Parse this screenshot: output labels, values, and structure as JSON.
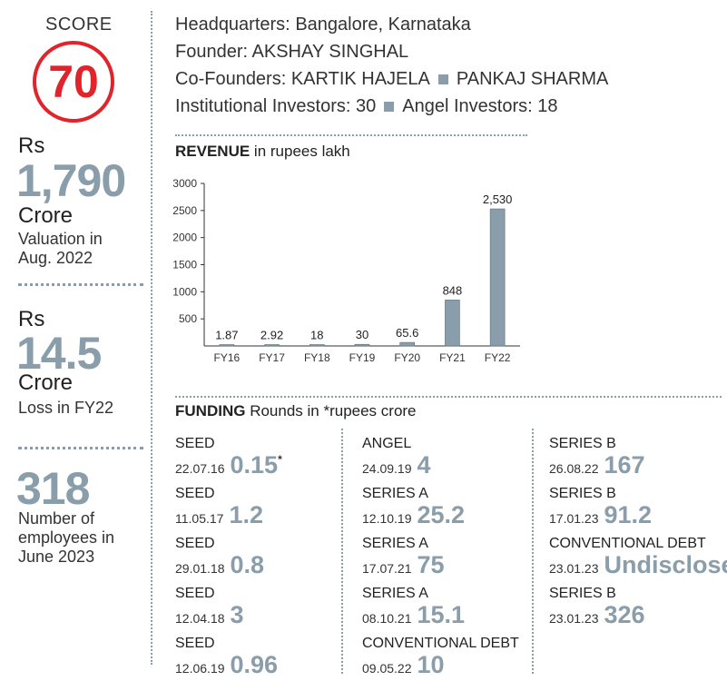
{
  "score": {
    "label": "SCORE",
    "value": "70"
  },
  "valuation": {
    "currency": "Rs",
    "amount": "1,790",
    "unit": "Crore",
    "caption_line1": "Valuation in",
    "caption_line2": "Aug. 2022"
  },
  "loss": {
    "currency": "Rs",
    "amount": "14.5",
    "unit": "Crore",
    "caption": "Loss in FY22"
  },
  "employees": {
    "count": "318",
    "caption_line1": "Number of",
    "caption_line2": "employees in",
    "caption_line3": "June 2023"
  },
  "info": {
    "hq_label": "Headquarters:",
    "hq_value": "Bangalore, Karnataka",
    "founder_label": "Founder:",
    "founder_value": "AKSHAY SINGHAL",
    "cofounders_label": "Co-Founders:",
    "cofounder1": "KARTIK HAJELA",
    "cofounder2": "PANKAJ SHARMA",
    "inst_label": "Institutional Investors:",
    "inst_value": "30",
    "angel_label": "Angel Investors:",
    "angel_value": "18"
  },
  "chart_data": {
    "type": "bar",
    "title": "REVENUE",
    "subtitle": "in rupees lakh",
    "categories": [
      "FY16",
      "FY17",
      "FY18",
      "FY19",
      "FY20",
      "FY21",
      "FY22"
    ],
    "values": [
      1.87,
      2.92,
      18,
      30,
      65.6,
      848,
      2530
    ],
    "value_labels": [
      "1.87",
      "2.92",
      "18",
      "30",
      "65.6",
      "848",
      "2,530"
    ],
    "yticks": [
      500,
      1000,
      1500,
      2000,
      2500,
      3000
    ],
    "ylim": [
      0,
      3000
    ],
    "xlabel": "",
    "ylabel": "",
    "bar_color": "#8a9daa"
  },
  "funding": {
    "title": "FUNDING",
    "subtitle": "Rounds in *rupees crore",
    "columns": [
      [
        {
          "type": "SEED",
          "date": "22.07.16",
          "amount": "0.15",
          "star": "*"
        },
        {
          "type": "SEED",
          "date": "11.05.17",
          "amount": "1.2",
          "star": ""
        },
        {
          "type": "SEED",
          "date": "29.01.18",
          "amount": "0.8",
          "star": ""
        },
        {
          "type": "SEED",
          "date": "12.04.18",
          "amount": "3",
          "star": ""
        },
        {
          "type": "SEED",
          "date": "12.06.19",
          "amount": "0.96",
          "star": ""
        }
      ],
      [
        {
          "type": "ANGEL",
          "date": "24.09.19",
          "amount": "4",
          "star": ""
        },
        {
          "type": "SERIES A",
          "date": "12.10.19",
          "amount": "25.2",
          "star": ""
        },
        {
          "type": "SERIES A",
          "date": "17.07.21",
          "amount": "75",
          "star": ""
        },
        {
          "type": "SERIES A",
          "date": "08.10.21",
          "amount": "15.1",
          "star": ""
        },
        {
          "type": "CONVENTIONAL DEBT",
          "date": "09.05.22",
          "amount": "10",
          "star": ""
        }
      ],
      [
        {
          "type": "SERIES B",
          "date": "26.08.22",
          "amount": "167",
          "star": ""
        },
        {
          "type": "SERIES B",
          "date": "17.01.23",
          "amount": "91.2",
          "star": ""
        },
        {
          "type": "CONVENTIONAL DEBT",
          "date": "23.01.23",
          "amount": "Undisclosed",
          "star": ""
        },
        {
          "type": "SERIES B",
          "date": "23.01.23",
          "amount": "326",
          "star": ""
        }
      ]
    ]
  }
}
